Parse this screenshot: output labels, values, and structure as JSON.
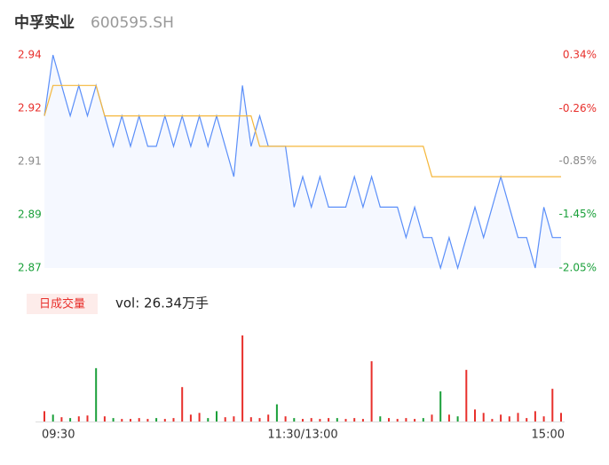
{
  "chart_data": {
    "type": "line",
    "title": "中孚实业",
    "subtitle": "600595.SH",
    "x": [
      0,
      4,
      8,
      12,
      16,
      20,
      24,
      28,
      32,
      36,
      40,
      44,
      48,
      52,
      56,
      60,
      64,
      68,
      72,
      76,
      80,
      84,
      88,
      92,
      96,
      100,
      104,
      108,
      112,
      116,
      120,
      124,
      128,
      132,
      136,
      140,
      144,
      148,
      152,
      156,
      160,
      164,
      168,
      172,
      176,
      180,
      184,
      188,
      192,
      196,
      200,
      204,
      208,
      212,
      216,
      220,
      224,
      228,
      232,
      236,
      240
    ],
    "xlim": [
      0,
      240
    ],
    "xticks": [
      {
        "value": 0,
        "label": "09:30"
      },
      {
        "value": 120,
        "label": "11:30/13:00"
      },
      {
        "value": 240,
        "label": "15:00"
      }
    ],
    "ylim": [
      2.87,
      2.94
    ],
    "yticks": [
      {
        "value": 2.87,
        "label": "2.87"
      },
      {
        "value": 2.8875,
        "label": "2.89"
      },
      {
        "value": 2.905,
        "label": "2.91"
      },
      {
        "value": 2.9225,
        "label": "2.92"
      },
      {
        "value": 2.94,
        "label": "2.94"
      }
    ],
    "ytick_colors": [
      "#1aa03a",
      "#1aa03a",
      "#888888",
      "#e8302c",
      "#e8302c"
    ],
    "y2lim": [
      -2.05,
      0.34
    ],
    "y2ticks": [
      {
        "value": -2.05,
        "label": "-2.05%"
      },
      {
        "value": -1.45,
        "label": "-1.45%"
      },
      {
        "value": -0.85,
        "label": "-0.85%"
      },
      {
        "value": -0.26,
        "label": "-0.26%"
      },
      {
        "value": 0.34,
        "label": "0.34%"
      }
    ],
    "series": [
      {
        "color": "#5b8ff9",
        "values": [
          2.92,
          2.94,
          2.93,
          2.92,
          2.93,
          2.92,
          2.93,
          2.92,
          2.91,
          2.92,
          2.91,
          2.92,
          2.91,
          2.91,
          2.92,
          2.91,
          2.92,
          2.91,
          2.92,
          2.91,
          2.92,
          2.91,
          2.9,
          2.93,
          2.91,
          2.92,
          2.91,
          2.91,
          2.91,
          2.89,
          2.9,
          2.89,
          2.9,
          2.89,
          2.89,
          2.89,
          2.9,
          2.89,
          2.9,
          2.89,
          2.89,
          2.89,
          2.88,
          2.89,
          2.88,
          2.88,
          2.87,
          2.88,
          2.87,
          2.88,
          2.89,
          2.88,
          2.89,
          2.9,
          2.89,
          2.88,
          2.88,
          2.87,
          2.89,
          2.88,
          2.88
        ]
      },
      {
        "color": "#f5b73b",
        "values": [
          2.92,
          2.93,
          2.93,
          2.93,
          2.93,
          2.93,
          2.93,
          2.92,
          2.92,
          2.92,
          2.92,
          2.92,
          2.92,
          2.92,
          2.92,
          2.92,
          2.92,
          2.92,
          2.92,
          2.92,
          2.92,
          2.92,
          2.92,
          2.92,
          2.92,
          2.91,
          2.91,
          2.91,
          2.91,
          2.91,
          2.91,
          2.91,
          2.91,
          2.91,
          2.91,
          2.91,
          2.91,
          2.91,
          2.91,
          2.91,
          2.91,
          2.91,
          2.91,
          2.91,
          2.91,
          2.9,
          2.9,
          2.9,
          2.9,
          2.9,
          2.9,
          2.9,
          2.9,
          2.9,
          2.9,
          2.9,
          2.9,
          2.9,
          2.9,
          2.9,
          2.9
        ]
      }
    ],
    "volume": {
      "label": "日成交量",
      "text": "vol: 26.34万手",
      "ylim": [
        0,
        100
      ],
      "values": [
        12,
        8,
        5,
        4,
        6,
        7,
        62,
        6,
        4,
        3,
        3,
        4,
        3,
        4,
        3,
        4,
        40,
        8,
        10,
        4,
        12,
        5,
        6,
        100,
        5,
        4,
        8,
        20,
        6,
        4,
        3,
        4,
        3,
        4,
        4,
        3,
        4,
        3,
        70,
        6,
        4,
        3,
        4,
        3,
        4,
        8,
        35,
        8,
        6,
        60,
        14,
        10,
        3,
        8,
        6,
        10,
        4,
        12,
        6,
        38,
        10
      ],
      "colors": [
        "#e8302c",
        "#1aa03a",
        "#e8302c",
        "#1aa03a",
        "#e8302c",
        "#e8302c",
        "#1aa03a",
        "#e8302c",
        "#1aa03a",
        "#e8302c",
        "#e8302c",
        "#e8302c",
        "#e8302c",
        "#1aa03a",
        "#e8302c",
        "#e8302c",
        "#e8302c",
        "#e8302c",
        "#e8302c",
        "#1aa03a",
        "#1aa03a",
        "#e8302c",
        "#e8302c",
        "#e8302c",
        "#e8302c",
        "#e8302c",
        "#e8302c",
        "#1aa03a",
        "#e8302c",
        "#1aa03a",
        "#e8302c",
        "#e8302c",
        "#e8302c",
        "#e8302c",
        "#1aa03a",
        "#e8302c",
        "#e8302c",
        "#e8302c",
        "#e8302c",
        "#1aa03a",
        "#e8302c",
        "#e8302c",
        "#e8302c",
        "#e8302c",
        "#1aa03a",
        "#e8302c",
        "#1aa03a",
        "#e8302c",
        "#1aa03a",
        "#e8302c",
        "#e8302c",
        "#e8302c",
        "#e8302c",
        "#e8302c",
        "#e8302c",
        "#e8302c",
        "#e8302c",
        "#e8302c",
        "#e8302c",
        "#e8302c",
        "#e8302c"
      ]
    }
  }
}
